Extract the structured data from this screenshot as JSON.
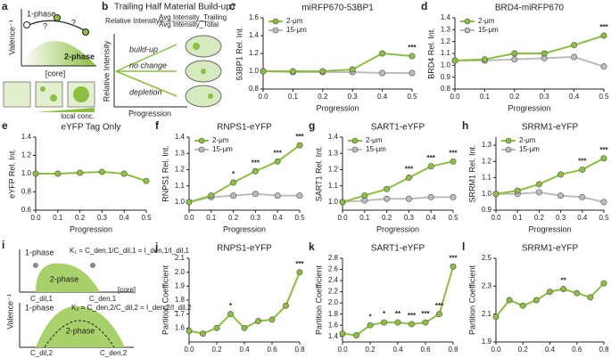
{
  "diagram_a": {
    "panel": "a",
    "ylabel": "Valence⁻¹",
    "phase1": "1-phase",
    "phase2": "2-phase",
    "q1": "?",
    "q2": "?",
    "xlabel": "[core]",
    "conc": "local conc."
  },
  "diagram_b": {
    "panel": "b",
    "title": "Trailing Half Material Build-up?",
    "formula_left": "Relative Intensity=",
    "formula_num": "Avg Intensity_Trailing",
    "formula_den": "Avg Intensity_Total",
    "ylabel": "Relative Intensity",
    "up": "build-up",
    "same": "no change",
    "down": "depletion",
    "xlabel": "Progression"
  },
  "diagram_i": {
    "panel": "i",
    "phase1_top": "1-phase",
    "phase2_top": "2-phase",
    "k1": "K₁ = C_den,1/C_dil,1 = I_den,1/I_dil,1",
    "cdil1": "C_dil,1",
    "cden1": "C_den,1",
    "xlabel": "[core]",
    "ylabel": "Valence⁻¹",
    "phase1_bot": "1-phase",
    "phase2_bot": "2-phase",
    "k2": "K₂ = C_den,2/C_dil,2 = I_den,2/I_dil,2",
    "cdil2": "C_dil,2",
    "cden2": "C_den,2"
  },
  "chart_data": [
    {
      "type": "line",
      "panel": "c",
      "title": "miRFP670-53BP1",
      "ylabel": "53BP1 Rel. Int.",
      "xlabel": "Progression",
      "x": [
        0,
        0.1,
        0.2,
        0.3,
        0.4,
        0.5
      ],
      "xlim": [
        0,
        0.5
      ],
      "xticks": [
        {
          "value": 0,
          "label": "0.0"
        },
        0.1,
        0.2,
        0.3,
        0.4,
        0.5
      ],
      "ylim": [
        0.8,
        1.6
      ],
      "yticks": [
        0.8,
        {
          "value": 1,
          "label": "1.0"
        },
        1.2,
        1.4,
        1.6
      ],
      "series": [
        {
          "name": "2-μm",
          "color": "#8cbf3f",
          "values": [
            1.0,
            1.0,
            1.0,
            1.02,
            1.2,
            1.17
          ]
        },
        {
          "name": "15-μm",
          "color": "#bdbdbd",
          "values": [
            1.0,
            0.99,
            0.99,
            0.99,
            0.98,
            0.98
          ]
        }
      ],
      "annotations": [
        {
          "x": 0.5,
          "text": "***"
        }
      ]
    },
    {
      "type": "line",
      "panel": "d",
      "title": "BRD4-miRFP670",
      "ylabel": "BRD4 Rel. Int.",
      "xlabel": "Progression",
      "x": [
        0,
        0.1,
        0.2,
        0.3,
        0.4,
        0.5
      ],
      "xlim": [
        0,
        0.5
      ],
      "xticks": [
        {
          "value": 0,
          "label": "0.0"
        },
        0.1,
        0.2,
        0.3,
        0.4,
        0.5
      ],
      "ylim": [
        0.8,
        1.4
      ],
      "yticks": [
        0.8,
        0.9,
        {
          "value": 1,
          "label": "1.0"
        },
        1.1,
        1.2,
        1.3,
        1.4
      ],
      "series": [
        {
          "name": "2-μm",
          "color": "#8cbf3f",
          "values": [
            1.04,
            1.05,
            1.1,
            1.1,
            1.17,
            1.25
          ]
        },
        {
          "name": "15-μm",
          "color": "#bdbdbd",
          "values": [
            1.04,
            1.04,
            1.05,
            1.06,
            1.07,
            0.99
          ]
        }
      ],
      "annotations": [
        {
          "x": 0.5,
          "text": "***"
        }
      ]
    },
    {
      "type": "line",
      "panel": "e",
      "title": "eYFP Tag Only",
      "ylabel": "eYFP Rel. Int.",
      "xlabel": "Progression",
      "x": [
        0,
        0.1,
        0.2,
        0.3,
        0.4,
        0.5
      ],
      "xlim": [
        0,
        0.5
      ],
      "xticks": [
        {
          "value": 0,
          "label": "0.0"
        },
        0.1,
        0.2,
        0.3,
        0.4,
        0.5
      ],
      "ylim": [
        0.6,
        1.4
      ],
      "yticks": [
        0.6,
        0.8,
        {
          "value": 1,
          "label": "1.0"
        },
        1.2,
        1.4
      ],
      "series": [
        {
          "color": "#8cbf3f",
          "values": [
            1.0,
            1.0,
            1.01,
            1.02,
            1.0,
            0.92
          ]
        }
      ],
      "annotations": []
    },
    {
      "type": "line",
      "panel": "f",
      "title": "RNPS1-eYFP",
      "ylabel": "RNPS1 Rel. Int.",
      "xlabel": "Progression",
      "x": [
        0,
        0.1,
        0.2,
        0.3,
        0.4,
        0.5
      ],
      "xlim": [
        0,
        0.5
      ],
      "xticks": [
        {
          "value": 0,
          "label": "0.0"
        },
        0.1,
        0.2,
        0.3,
        0.4,
        0.5
      ],
      "ylim": [
        0.95,
        1.4
      ],
      "yticks": [
        {
          "value": 1,
          "label": "1.0"
        },
        1.1,
        1.2,
        1.3,
        1.4
      ],
      "series": [
        {
          "name": "2-μm",
          "color": "#8cbf3f",
          "values": [
            1.0,
            1.04,
            1.12,
            1.19,
            1.25,
            1.35
          ]
        },
        {
          "name": "15-μm",
          "color": "#bdbdbd",
          "values": [
            1.0,
            1.03,
            1.04,
            1.05,
            1.04,
            1.04
          ]
        }
      ],
      "annotations": [
        {
          "x": 0.2,
          "text": "*"
        },
        {
          "x": 0.3,
          "text": "***"
        },
        {
          "x": 0.4,
          "text": "***"
        },
        {
          "x": 0.5,
          "text": "***"
        }
      ]
    },
    {
      "type": "line",
      "panel": "g",
      "title": "SART1-eYFP",
      "ylabel": "SART1 Rel. Int.",
      "xlabel": "Progression",
      "x": [
        0,
        0.1,
        0.2,
        0.3,
        0.4,
        0.5
      ],
      "xlim": [
        0,
        0.5
      ],
      "xticks": [
        {
          "value": 0,
          "label": "0.0"
        },
        0.1,
        0.2,
        0.3,
        0.4,
        0.5
      ],
      "ylim": [
        0.95,
        1.4
      ],
      "yticks": [
        {
          "value": 1,
          "label": "1.0"
        },
        1.1,
        1.2,
        1.3,
        1.4
      ],
      "series": [
        {
          "name": "2-μm",
          "color": "#8cbf3f",
          "values": [
            1.0,
            1.04,
            1.08,
            1.15,
            1.22,
            1.25
          ]
        },
        {
          "name": "15-μm",
          "color": "#bdbdbd",
          "values": [
            1.0,
            1.01,
            1.02,
            1.02,
            1.03,
            1.03
          ]
        }
      ],
      "annotations": [
        {
          "x": 0.3,
          "text": "***"
        },
        {
          "x": 0.4,
          "text": "***"
        },
        {
          "x": 0.5,
          "text": "***"
        }
      ]
    },
    {
      "type": "line",
      "panel": "h",
      "title": "SRRM1-eYFP",
      "ylabel": "SRRM1 Rel. Int.",
      "xlabel": "Progression",
      "x": [
        0,
        0.1,
        0.2,
        0.3,
        0.4,
        0.5
      ],
      "xlim": [
        0,
        0.5
      ],
      "xticks": [
        {
          "value": 0,
          "label": "0.0"
        },
        0.1,
        0.2,
        0.3,
        0.4,
        0.5
      ],
      "ylim": [
        0.9,
        1.35
      ],
      "yticks": [
        0.9,
        {
          "value": 1,
          "label": "1.0"
        },
        1.1,
        1.2,
        1.3
      ],
      "series": [
        {
          "name": "2-μm",
          "color": "#8cbf3f",
          "values": [
            1.0,
            1.02,
            1.06,
            1.12,
            1.15,
            1.22
          ]
        },
        {
          "name": "15-μm",
          "color": "#bdbdbd",
          "values": [
            1.0,
            1.0,
            1.01,
            0.99,
            0.98,
            0.95
          ]
        }
      ],
      "annotations": [
        {
          "x": 0.4,
          "text": "***"
        },
        {
          "x": 0.5,
          "text": "***"
        }
      ]
    },
    {
      "type": "line",
      "panel": "j",
      "title": "RNPS1-eYFP",
      "ylabel": "Partition Coefficient",
      "x": [
        0,
        0.1,
        0.2,
        0.3,
        0.4,
        0.5,
        0.6,
        0.7,
        0.8
      ],
      "xlim": [
        0,
        0.8
      ],
      "xticks": [
        {
          "value": 0,
          "label": "0.0"
        },
        0.2,
        0.4,
        0.6,
        0.8
      ],
      "ylim": [
        1.5,
        2.1
      ],
      "yticks": [
        1.6,
        1.7,
        1.8,
        1.9,
        {
          "value": 2,
          "label": "2.0"
        },
        2.1
      ],
      "series": [
        {
          "color": "#8cbf3f",
          "values": [
            1.58,
            1.56,
            1.6,
            1.7,
            1.6,
            1.65,
            1.66,
            1.76,
            2.0
          ]
        }
      ],
      "annotations": [
        {
          "x": 0.3,
          "text": "*"
        },
        {
          "x": 0.8,
          "text": "***"
        }
      ]
    },
    {
      "type": "line",
      "panel": "k",
      "title": "SART1-eYFP",
      "ylabel": "Partition Coefficient",
      "x": [
        0,
        0.1,
        0.2,
        0.3,
        0.4,
        0.5,
        0.6,
        0.7,
        0.8
      ],
      "xlim": [
        0,
        0.8
      ],
      "xticks": [
        {
          "value": 0,
          "label": "0.0"
        },
        0.2,
        0.4,
        0.6,
        0.8
      ],
      "ylim": [
        1.3,
        2.8
      ],
      "yticks": [
        1.4,
        1.6,
        1.8,
        {
          "value": 2,
          "label": "2.0"
        },
        2.2,
        2.4,
        2.6,
        2.8
      ],
      "series": [
        {
          "color": "#8cbf3f",
          "values": [
            1.45,
            1.42,
            1.6,
            1.65,
            1.65,
            1.62,
            1.65,
            1.8,
            2.65
          ]
        }
      ],
      "annotations": [
        {
          "x": 0.2,
          "text": "*"
        },
        {
          "x": 0.3,
          "text": "*"
        },
        {
          "x": 0.4,
          "text": "**"
        },
        {
          "x": 0.5,
          "text": "***"
        },
        {
          "x": 0.6,
          "text": "***"
        },
        {
          "x": 0.7,
          "text": "***"
        },
        {
          "x": 0.8,
          "text": "***"
        }
      ]
    },
    {
      "type": "line",
      "panel": "l",
      "title": "SRRM1-eYFP",
      "ylabel": "Partition Coefficient",
      "x": [
        0,
        0.1,
        0.2,
        0.3,
        0.4,
        0.5,
        0.6,
        0.7,
        0.8
      ],
      "xlim": [
        0,
        0.8
      ],
      "xticks": [
        {
          "value": 0,
          "label": "0.0"
        },
        0.2,
        0.4,
        0.6,
        0.8
      ],
      "ylim": [
        1.9,
        2.5
      ],
      "yticks": [
        1.9,
        2.1,
        2.3,
        2.5
      ],
      "series": [
        {
          "color": "#8cbf3f",
          "values": [
            2.08,
            2.2,
            2.16,
            2.2,
            2.26,
            2.28,
            2.25,
            2.22,
            2.32
          ]
        }
      ],
      "annotations": [
        {
          "x": 0.5,
          "text": "**"
        }
      ]
    }
  ]
}
